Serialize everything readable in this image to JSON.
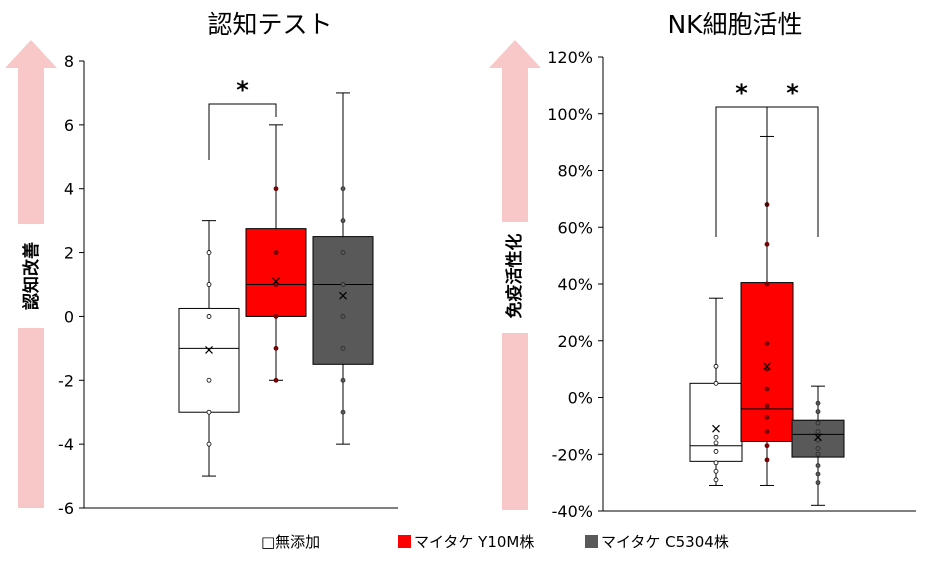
{
  "colors": {
    "none": "#ffffff",
    "y10m": "#ff0000",
    "c5304": "#595959",
    "arrow": "#f8c8c8",
    "sig": "*"
  },
  "chart_data": [
    {
      "type": "box",
      "title": "認知テスト",
      "ylabel": "認知改善",
      "ylim": [
        -6,
        8
      ],
      "yticks": [
        -6,
        -4,
        -2,
        0,
        2,
        4,
        6,
        8
      ],
      "ytick_labels": [
        "-6",
        "-4",
        "-2",
        "0",
        "2",
        "4",
        "6",
        "8"
      ],
      "boxes": [
        {
          "series": "□無添加",
          "min": -5,
          "q1": -3,
          "median": -1,
          "q3": 0.25,
          "max": 3,
          "mean": -1.05,
          "points": [
            2,
            1,
            0,
            -2,
            -3,
            -4
          ]
        },
        {
          "series": "マイタケ Y10M株",
          "min": -2,
          "q1": 0,
          "median": 1,
          "q3": 2.75,
          "max": 6,
          "mean": 1.1,
          "points": [
            4,
            2,
            1,
            0,
            -1,
            -2
          ]
        },
        {
          "series": "マイタケ C5304株",
          "min": -4,
          "q1": -1.5,
          "median": 1,
          "q3": 2.5,
          "max": 7,
          "mean": 0.65,
          "points": [
            4,
            3,
            2,
            1,
            0,
            -1,
            -2,
            -3
          ]
        }
      ],
      "significance": [
        {
          "between": [
            0,
            1
          ],
          "label": "*"
        }
      ]
    },
    {
      "type": "box",
      "title": "NK細胞活性",
      "ylabel": "免疫活性化",
      "ylim": [
        -40,
        120
      ],
      "yticks": [
        -40,
        -20,
        0,
        20,
        40,
        60,
        80,
        100,
        120
      ],
      "ytick_labels": [
        "-40%",
        "-20%",
        "0%",
        "20%",
        "40%",
        "60%",
        "80%",
        "100%",
        "120%"
      ],
      "boxes": [
        {
          "series": "□無添加",
          "min": -31,
          "q1": -22.5,
          "median": -17,
          "q3": 5,
          "max": 35,
          "mean": -11,
          "points": [
            11,
            5,
            -14,
            -16,
            -19,
            -23,
            -26,
            -29
          ]
        },
        {
          "series": "マイタケ Y10M株",
          "min": -31,
          "q1": -15.5,
          "median": -4,
          "q3": 40.5,
          "max": 92,
          "mean": 11,
          "points": [
            68,
            54,
            40,
            19,
            10,
            3,
            -3,
            -7,
            -12,
            -17,
            -22
          ]
        },
        {
          "series": "マイタケ C5304株",
          "min": -38,
          "q1": -21,
          "median": -13,
          "q3": -8,
          "max": 4,
          "mean": -14,
          "points": [
            -2,
            -5,
            -9,
            -12,
            -15,
            -18,
            -20,
            -24,
            -27,
            -30
          ]
        }
      ],
      "significance": [
        {
          "between": [
            0,
            1
          ],
          "label": "*"
        },
        {
          "between": [
            1,
            2
          ],
          "label": "*"
        }
      ]
    }
  ],
  "legend": {
    "items": [
      {
        "label": "□無添加",
        "color": "#ffffff"
      },
      {
        "label": "マイタケ Y10M株",
        "color": "#ff0000"
      },
      {
        "label": "マイタケ C5304株",
        "color": "#595959"
      }
    ]
  }
}
